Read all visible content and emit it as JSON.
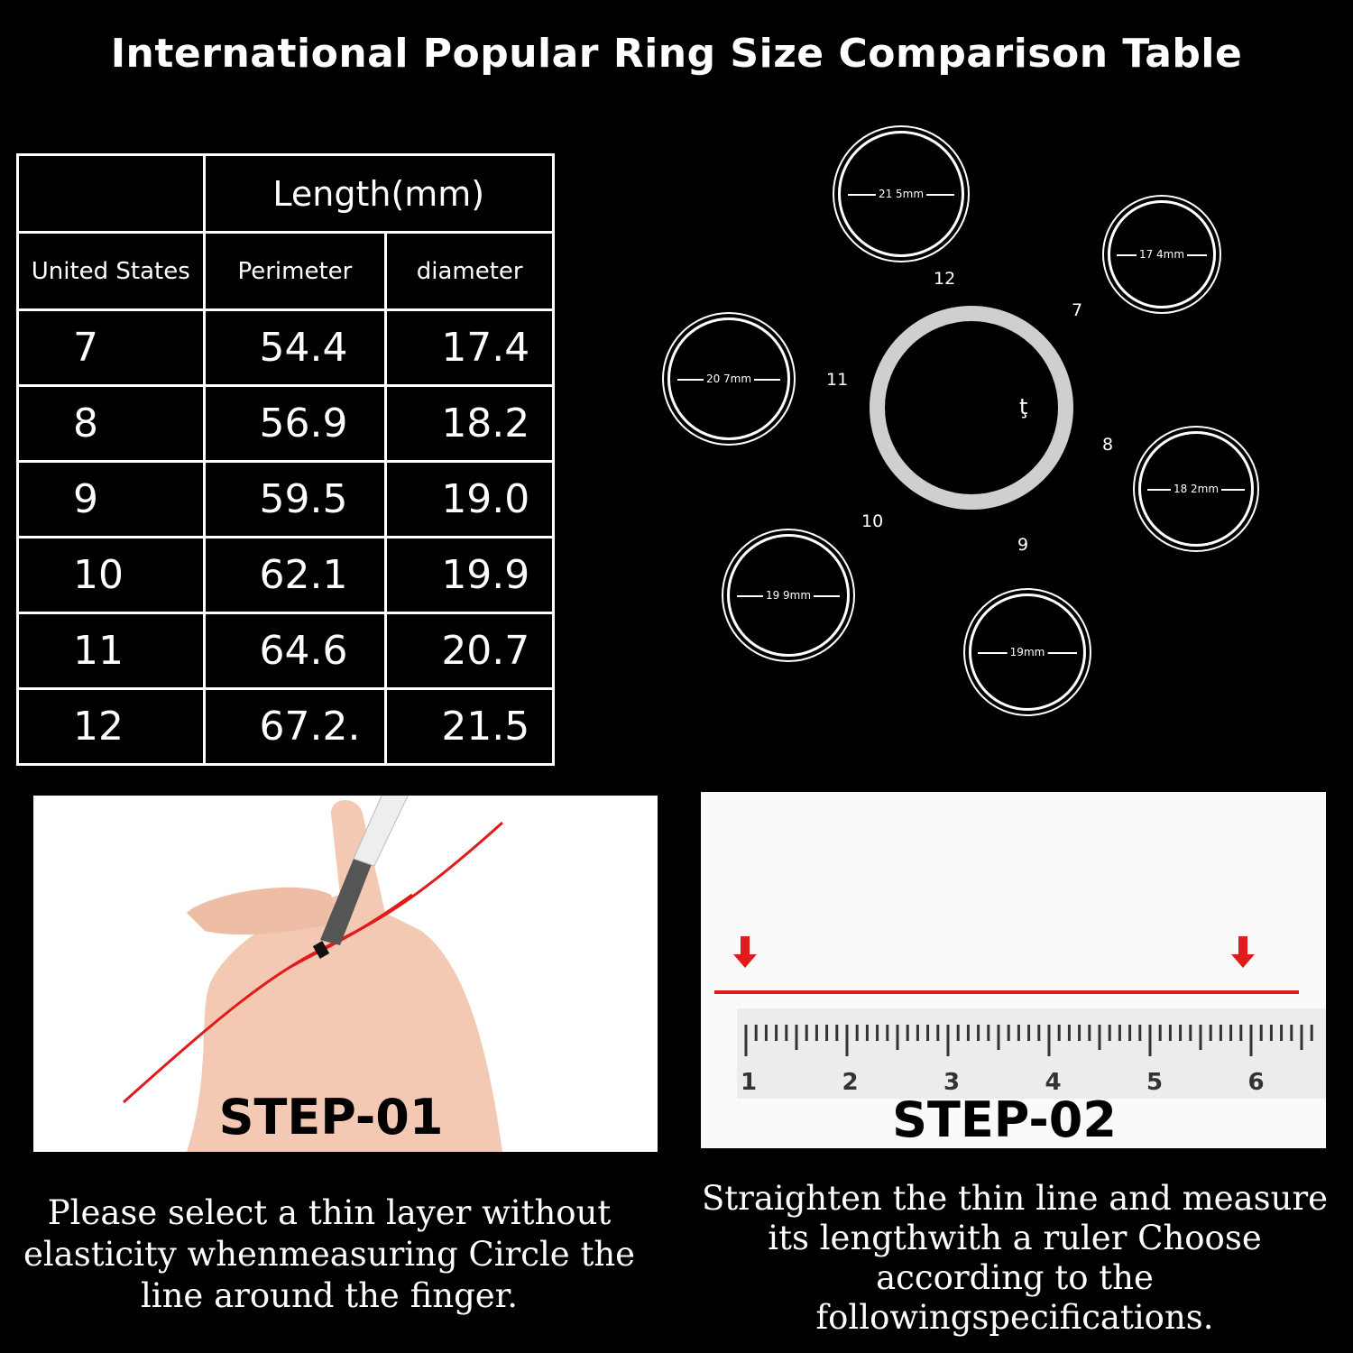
{
  "title": "International Popular Ring Size Comparison Table",
  "table": {
    "group_header": "Length(mm)",
    "headers": [
      "United States",
      "Perimeter",
      "diameter"
    ],
    "rows": [
      [
        "7",
        "54.4",
        "17.4"
      ],
      [
        "8",
        "56.9",
        "18.2"
      ],
      [
        "9",
        "59.5",
        "19.0"
      ],
      [
        "10",
        "62.1",
        "19.9"
      ],
      [
        "11",
        "64.6",
        "20.7"
      ],
      [
        "12",
        "67.2.",
        "21.5"
      ]
    ]
  },
  "rings": [
    {
      "size": "12",
      "diameter_label": "21 5mm"
    },
    {
      "size": "7",
      "diameter_label": "17 4mm"
    },
    {
      "size": "11",
      "diameter_label": "20 7mm"
    },
    {
      "size": "8",
      "diameter_label": "18 2mm"
    },
    {
      "size": "10",
      "diameter_label": "19 9mm"
    },
    {
      "size": "9",
      "diameter_label": "19mm"
    }
  ],
  "center_mark": "ţ",
  "step1": {
    "label": "STEP-01",
    "description": "Please select a thin layer without elasticity whenmeasuring Circle the line around the finger."
  },
  "step2": {
    "label": "STEP-02",
    "description": "Straighten the thin line and measure its lengthwith a ruler Choose according to the followingspecifications.",
    "ruler_numbers": [
      "1",
      "2",
      "3",
      "4",
      "5",
      "6"
    ]
  },
  "colors": {
    "accent": "#e01b1b",
    "background": "#000000"
  }
}
